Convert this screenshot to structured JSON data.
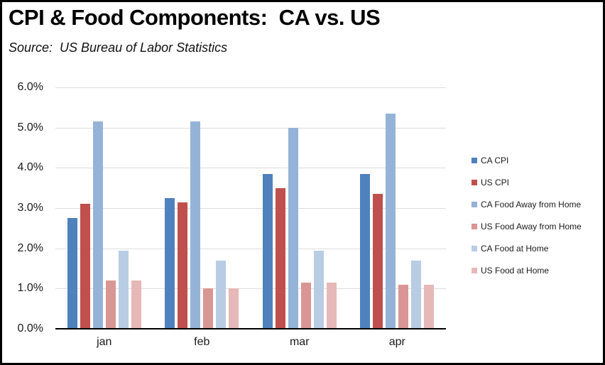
{
  "chart_data": {
    "type": "bar",
    "title": "CPI & Food Components:  CA vs. US",
    "subtitle": "Source:  US Bureau of Labor Statistics",
    "categories": [
      "jan",
      "feb",
      "mar",
      "apr"
    ],
    "series": [
      {
        "name": "CA CPI",
        "color": "#4F81BD",
        "values": [
          2.75,
          3.25,
          3.85,
          3.85
        ]
      },
      {
        "name": "US CPI",
        "color": "#C0504D",
        "values": [
          3.1,
          3.15,
          3.5,
          3.35
        ]
      },
      {
        "name": "CA Food Away from Home",
        "color": "#95B3D7",
        "values": [
          5.15,
          5.15,
          5.0,
          5.35
        ]
      },
      {
        "name": "US Food Away from Home",
        "color": "#D99694",
        "values": [
          1.2,
          1.0,
          1.15,
          1.1
        ]
      },
      {
        "name": "CA Food at Home",
        "color": "#B8CCE4",
        "values": [
          1.95,
          1.7,
          1.95,
          1.7
        ]
      },
      {
        "name": "US Food at Home",
        "color": "#E6B8B7",
        "values": [
          1.2,
          1.0,
          1.15,
          1.1
        ]
      }
    ],
    "ylim": [
      0,
      6
    ],
    "ytick_step": 1,
    "ytick_labels": [
      "0.0%",
      "1.0%",
      "2.0%",
      "3.0%",
      "4.0%",
      "5.0%",
      "6.0%"
    ],
    "grid": true,
    "grid_color": "#DCDCDC",
    "axis_color": "#000000",
    "legend_position": "right"
  }
}
